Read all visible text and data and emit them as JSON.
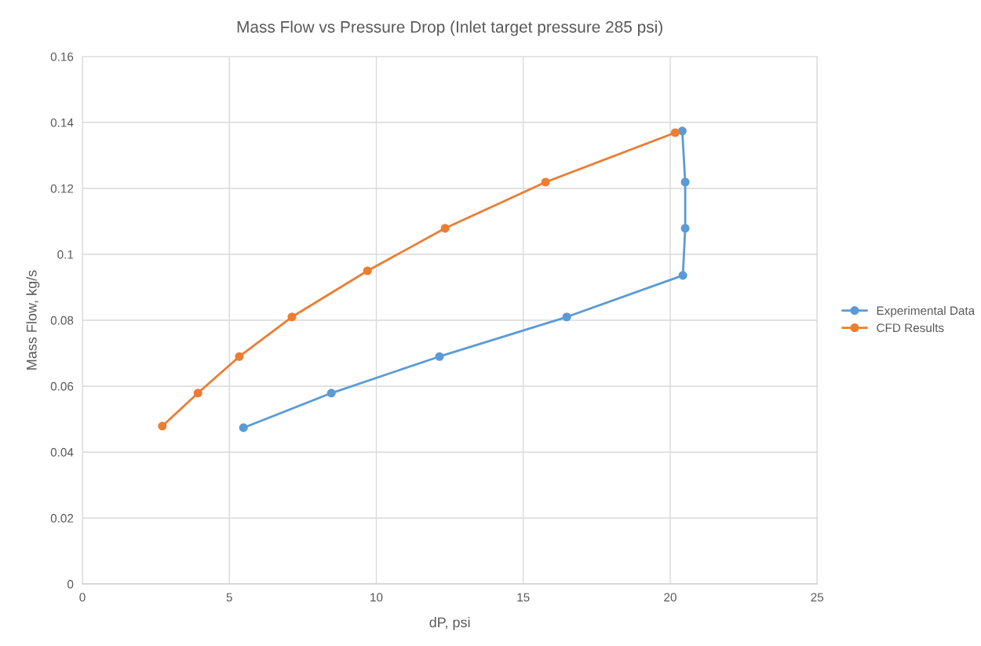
{
  "chart_data": {
    "type": "line",
    "title": "Mass Flow vs Pressure Drop (Inlet target pressure 285 psi)",
    "xlabel": "dP, psi",
    "ylabel": "Mass Flow, kg/s",
    "series": [
      {
        "name": "Experimental Data",
        "color": "#5b9bd5",
        "x": [
          20.41,
          20.51,
          20.51,
          20.43,
          16.48,
          12.15,
          8.47,
          5.48
        ],
        "values": [
          0.1374,
          0.1219,
          0.1079,
          0.0936,
          0.081,
          0.069,
          0.0579,
          0.0474
        ]
      },
      {
        "name": "CFD Results",
        "color": "#ed7d31",
        "x": [
          2.72,
          3.93,
          5.34,
          7.13,
          9.7,
          12.34,
          15.76,
          20.17
        ],
        "values": [
          0.0479,
          0.0579,
          0.069,
          0.081,
          0.095,
          0.1079,
          0.1219,
          0.1369
        ]
      }
    ],
    "xlim": [
      0,
      25
    ],
    "xticks": [
      0,
      5,
      10,
      15,
      20,
      25
    ],
    "ylim": [
      0,
      0.16
    ],
    "yticks": [
      {
        "value": 0,
        "label": "0"
      },
      {
        "value": 0.02,
        "label": "0.02"
      },
      {
        "value": 0.04,
        "label": "0.04"
      },
      {
        "value": 0.06,
        "label": "0.06"
      },
      {
        "value": 0.08,
        "label": "0.08"
      },
      {
        "value": 0.1,
        "label": "0.1"
      },
      {
        "value": 0.12,
        "label": "0.12"
      },
      {
        "value": 0.14,
        "label": "0.14"
      },
      {
        "value": 0.16,
        "label": "0.16"
      }
    ],
    "grid": true,
    "legend": "right",
    "marker": "circle",
    "line_style": "solid"
  }
}
